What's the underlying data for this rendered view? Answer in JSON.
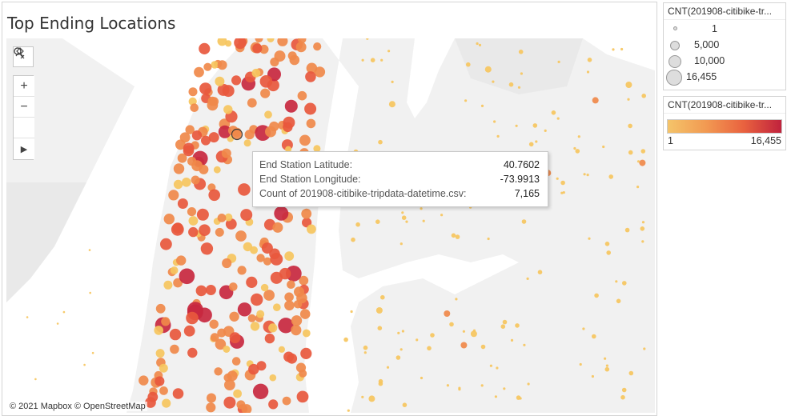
{
  "title": "Top Ending Locations",
  "attribution": "© 2021 Mapbox © OpenStreetMap",
  "toolbar": {
    "search_icon": "magnifier-icon",
    "zoom_in": "+",
    "zoom_out": "−",
    "pin_icon": "pin-clear-icon",
    "play_icon": "▶"
  },
  "tooltip": {
    "rows": [
      {
        "label": "End Station Latitude:",
        "value": "40.7602"
      },
      {
        "label": "End Station Longitude:",
        "value": "-73.9913"
      },
      {
        "label": "Count of 201908-citibike-tripdata-datetime.csv:",
        "value": "7,165"
      }
    ]
  },
  "size_legend": {
    "title": "CNT(201908-citibike-tr...",
    "items": [
      {
        "label": "1",
        "value": 1
      },
      {
        "label": "5,000",
        "value": 5000
      },
      {
        "label": "10,000",
        "value": 10000
      },
      {
        "label": "16,455",
        "value": 16455
      }
    ]
  },
  "color_legend": {
    "title": "CNT(201908-citibike-tr...",
    "min_label": "1",
    "max_label": "16,455",
    "colors": [
      "#f4c46a",
      "#f29a52",
      "#e9623f",
      "#c0223d"
    ]
  },
  "colors": {
    "water": "#ffffff",
    "land": "#f1f1f1",
    "land_dark": "#e6e6e6",
    "low": "#f6c65e",
    "mid": "#f0894a",
    "high": "#e8583d",
    "max": "#c8283f",
    "selected_stroke": "#333333"
  }
}
